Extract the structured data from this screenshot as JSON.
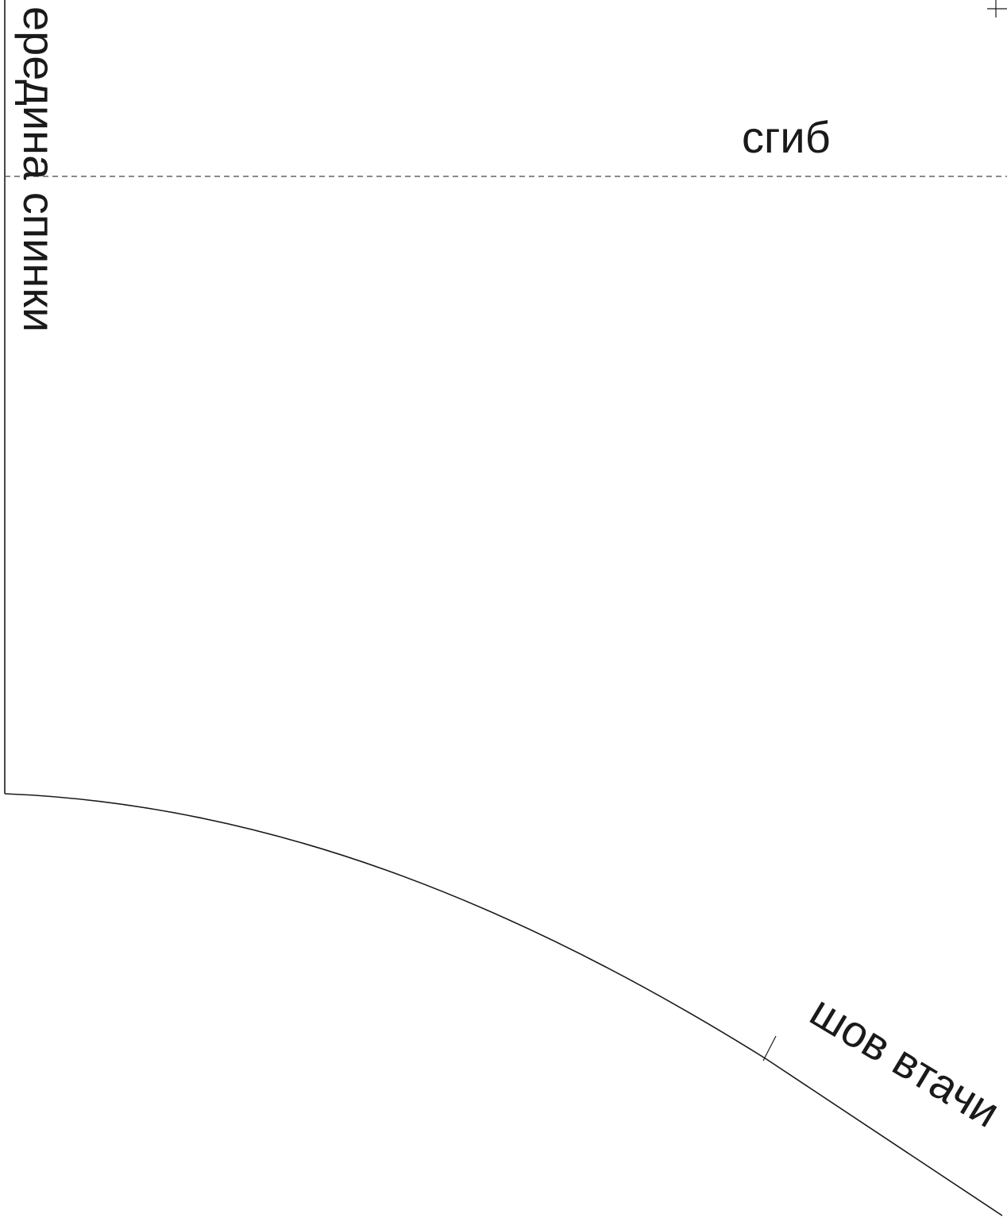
{
  "labels": {
    "fold": "сгиб",
    "center_back": "ередина спинки",
    "seam": "шов втачи"
  },
  "colors": {
    "line": "#1a1a1a",
    "fold_line": "#444444",
    "background": "#ffffff"
  }
}
